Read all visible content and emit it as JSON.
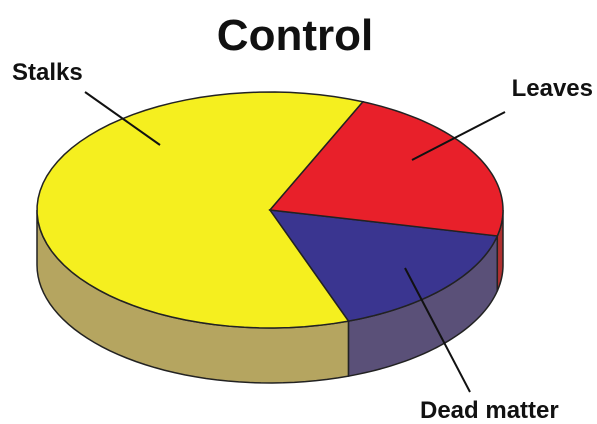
{
  "chart_data": {
    "type": "pie",
    "title": "Control",
    "categories": [
      "Stalks",
      "Dead matter",
      "Leaves"
    ],
    "values": [
      62,
      16,
      22
    ],
    "colors": [
      "#f5ef1f",
      "#3a3590",
      "#e8202a"
    ],
    "side_colors": [
      "#b5a560",
      "#5a5078",
      "#b03030"
    ]
  }
}
